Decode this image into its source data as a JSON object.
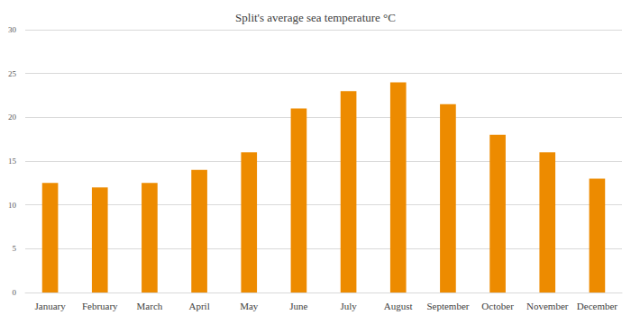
{
  "chart_data": {
    "type": "bar",
    "title": "Split's average sea temperature °C",
    "categories": [
      "January",
      "February",
      "March",
      "April",
      "May",
      "June",
      "July",
      "August",
      "September",
      "October",
      "November",
      "December"
    ],
    "values": [
      12.5,
      12,
      12.5,
      14,
      16,
      21,
      23,
      24,
      21.5,
      18,
      16,
      13
    ],
    "color": "#ed8b00",
    "ylim": [
      0,
      30
    ],
    "yticks": [
      0,
      5,
      10,
      15,
      20,
      25,
      30
    ],
    "grid": true
  }
}
